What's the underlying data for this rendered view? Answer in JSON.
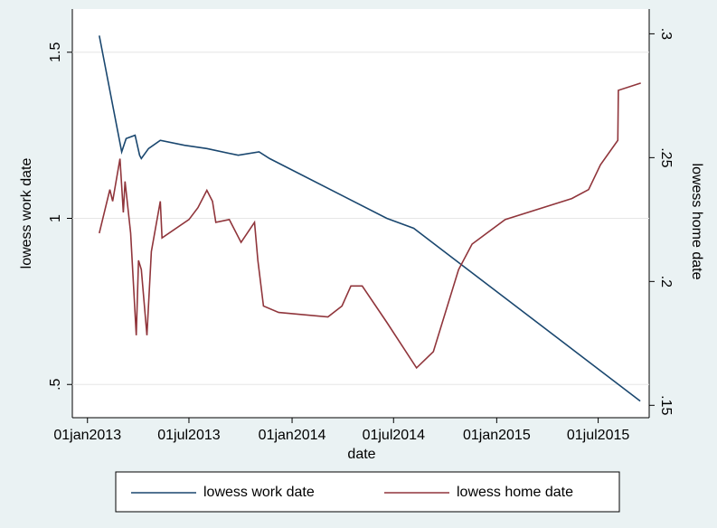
{
  "chart_data": {
    "type": "line",
    "xlabel": "date",
    "ylabel": "lowess work date",
    "y2label": "lowess home date",
    "xlim": [
      "2012-12-05",
      "2015-09-30"
    ],
    "xticks": [
      {
        "value": "2013-01-01",
        "label": "01jan2013"
      },
      {
        "value": "2013-07-01",
        "label": "01jul2013"
      },
      {
        "value": "2014-01-01",
        "label": "01jan2014"
      },
      {
        "value": "2014-07-01",
        "label": "01jul2014"
      },
      {
        "value": "2015-01-01",
        "label": "01jan2015"
      },
      {
        "value": "2015-07-01",
        "label": "01jul2015"
      }
    ],
    "ylim": [
      0.4,
      1.63
    ],
    "yticks": [
      {
        "value": 0.5,
        "label": ".5"
      },
      1,
      1.5
    ],
    "y2lim": [
      0.145,
      0.31
    ],
    "y2ticks": [
      {
        "value": 0.15,
        "label": ".15"
      },
      {
        "value": 0.2,
        "label": ".2"
      },
      {
        "value": 0.25,
        "label": ".25"
      },
      {
        "value": 0.3,
        "label": ".3"
      }
    ],
    "grid": true,
    "legend": "bottom",
    "series": [
      {
        "name": "lowess work date",
        "color": "#1a476f",
        "x": [
          "2013-01-22",
          "2013-03-03",
          "2013-03-11",
          "2013-03-27",
          "2013-04-04",
          "2013-04-07",
          "2013-04-20",
          "2013-05-11",
          "2013-06-23",
          "2013-08-02",
          "2013-09-27",
          "2013-11-03",
          "2013-11-22",
          "2014-06-19",
          "2014-08-06",
          "2015-09-14"
        ],
        "values": [
          1.55,
          1.2,
          1.24,
          1.25,
          1.19,
          1.18,
          1.21,
          1.235,
          1.22,
          1.21,
          1.19,
          1.2,
          1.18,
          1.0,
          0.97,
          0.45
        ]
      },
      {
        "name": "lowess home date",
        "color": "#90353b",
        "axis": "y2",
        "x": [
          "2013-01-22",
          "2013-02-10",
          "2013-02-15",
          "2013-02-28",
          "2013-03-06",
          "2013-03-09",
          "2013-03-19",
          "2013-03-29",
          "2013-04-02",
          "2013-04-07",
          "2013-04-17",
          "2013-04-25",
          "2013-05-11",
          "2013-05-14",
          "2013-07-01",
          "2013-07-17",
          "2013-08-02",
          "2013-08-12",
          "2013-08-18",
          "2013-09-11",
          "2013-10-02",
          "2013-10-26",
          "2013-11-01",
          "2013-11-11",
          "2013-12-08",
          "2014-03-06",
          "2014-03-31",
          "2014-04-16",
          "2014-05-06",
          "2014-06-19",
          "2014-08-11",
          "2014-09-10",
          "2014-10-25",
          "2014-11-18",
          "2015-01-16",
          "2015-05-15",
          "2015-06-14",
          "2015-07-05",
          "2015-08-05",
          "2015-08-06",
          "2015-09-15"
        ],
        "values": [
          0.2195,
          0.2371,
          0.2324,
          0.2496,
          0.2279,
          0.2404,
          0.2195,
          0.1783,
          0.2085,
          0.2048,
          0.1783,
          0.2121,
          0.2324,
          0.2176,
          0.225,
          0.2298,
          0.2368,
          0.2324,
          0.2239,
          0.225,
          0.2158,
          0.2239,
          0.2085,
          0.1901,
          0.1875,
          0.1857,
          0.1901,
          0.1982,
          0.1982,
          0.1835,
          0.1651,
          0.1717,
          0.2048,
          0.2151,
          0.225,
          0.2335,
          0.2371,
          0.2471,
          0.257,
          0.2772,
          0.2801
        ]
      }
    ]
  }
}
